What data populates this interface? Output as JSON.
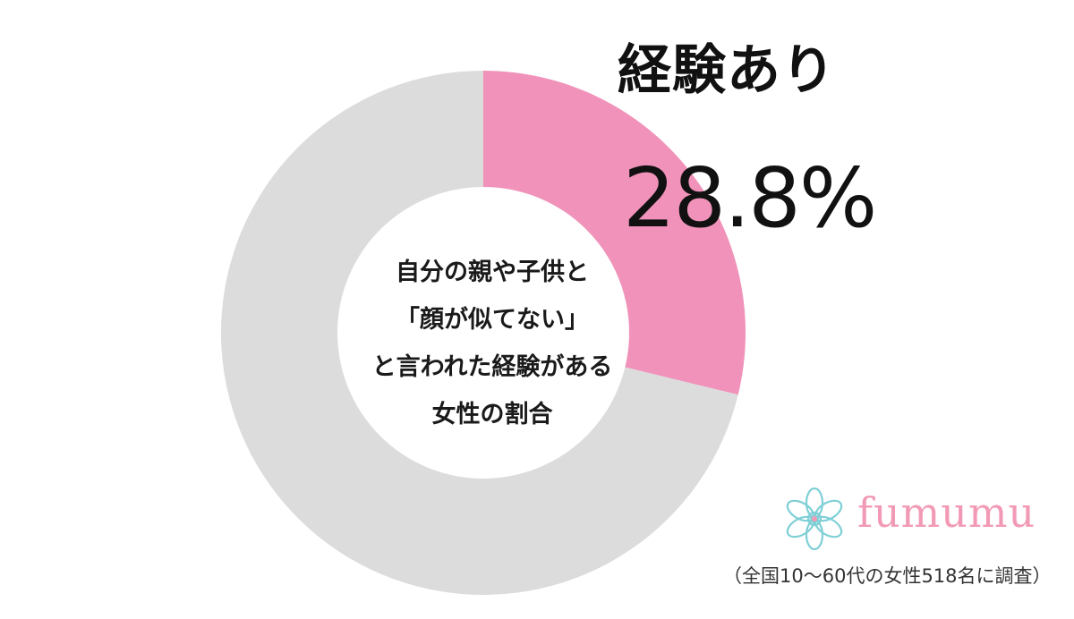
{
  "chart_data": {
    "type": "pie",
    "donut": true,
    "slices": [
      {
        "name": "経験あり",
        "value": 28.8,
        "color": "#f092b9"
      },
      {
        "name": "",
        "value": 71.2,
        "color": "#dcdcdc"
      }
    ],
    "center_text": [
      "自分の親や子供と",
      "「顔が似てない」",
      "と言われた経験がある",
      "女性の割合"
    ],
    "annotations": {
      "highlight_label": "経験あり",
      "highlight_value": "28.8%"
    }
  },
  "brand": {
    "name": "fumumu",
    "icon": "flower-logo-icon",
    "color": "#f29ab5"
  },
  "footnote": "（全国10～60代の女性518名に調査）"
}
